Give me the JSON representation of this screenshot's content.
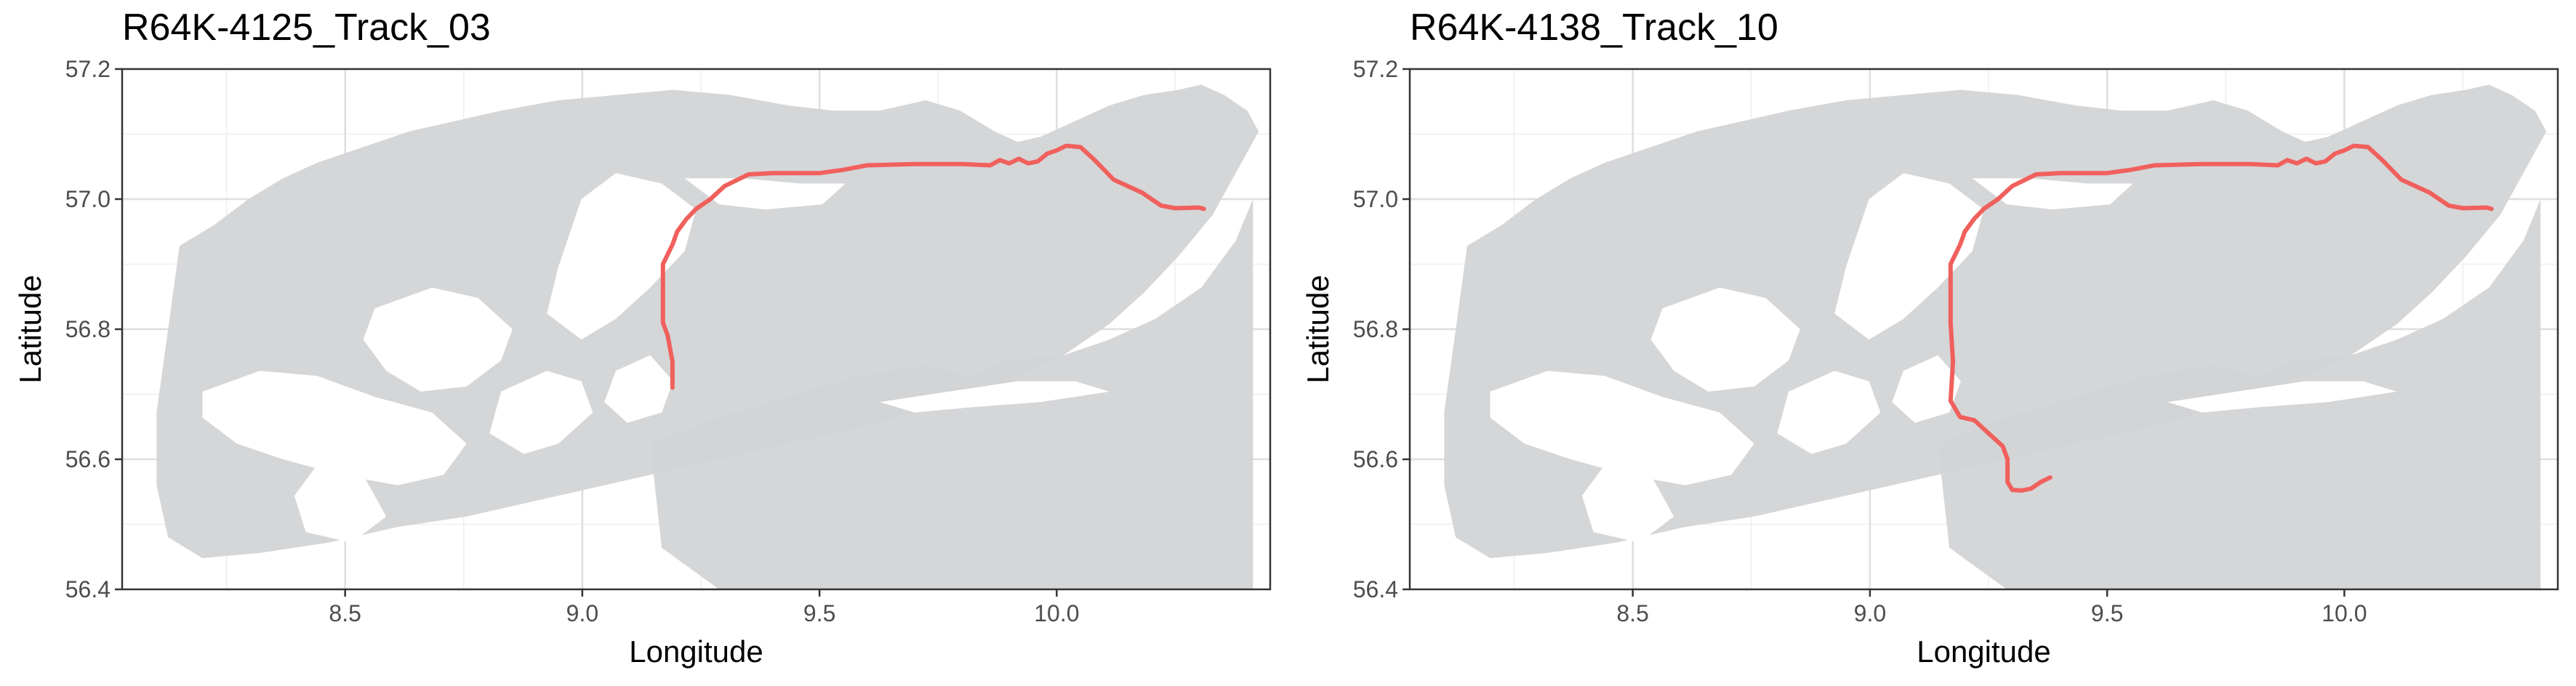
{
  "colors": {
    "track": "#f0605c",
    "land": "#d3d4d6",
    "water": "#ffffff",
    "grid_major": "#dedede",
    "grid_minor": "#efefef",
    "border": "#333333"
  },
  "chart_data": [
    {
      "type": "line",
      "title": "R64K-4125_Track_03",
      "xlabel": "Longitude",
      "ylabel": "Latitude",
      "xlim": [
        8.03,
        10.45
      ],
      "ylim": [
        56.4,
        57.2
      ],
      "x_ticks": [
        "8.5",
        "9.0",
        "9.5",
        "10.0"
      ],
      "y_ticks": [
        "56.4",
        "56.6",
        "56.8",
        "57.0",
        "57.2"
      ],
      "grid": true,
      "series": [
        {
          "x": [
            10.31,
            10.3,
            10.25,
            10.22,
            10.18,
            10.12,
            10.08,
            10.05,
            10.02,
            10.0,
            9.98,
            9.96,
            9.94,
            9.92,
            9.9,
            9.88,
            9.86,
            9.8,
            9.7,
            9.6,
            9.55,
            9.5,
            9.45,
            9.4,
            9.35,
            9.3,
            9.27,
            9.24,
            9.22,
            9.2,
            9.19,
            9.17,
            9.17,
            9.17,
            9.18,
            9.19,
            9.19
          ],
          "y": [
            56.985,
            56.987,
            56.986,
            56.99,
            57.01,
            57.03,
            57.06,
            57.08,
            57.082,
            57.075,
            57.07,
            57.058,
            57.055,
            57.062,
            57.055,
            57.06,
            57.052,
            57.054,
            57.054,
            57.052,
            57.045,
            57.04,
            57.04,
            57.04,
            57.038,
            57.02,
            57.0,
            56.985,
            56.97,
            56.95,
            56.93,
            56.9,
            56.85,
            56.81,
            56.79,
            56.75,
            56.71
          ]
        }
      ]
    },
    {
      "type": "line",
      "title": "R64K-4138_Track_10",
      "xlabel": "Longitude",
      "ylabel": "Latitude",
      "xlim": [
        8.03,
        10.45
      ],
      "ylim": [
        56.4,
        57.2
      ],
      "x_ticks": [
        "8.5",
        "9.0",
        "9.5",
        "10.0"
      ],
      "y_ticks": [
        "56.4",
        "56.6",
        "56.8",
        "57.0",
        "57.2"
      ],
      "grid": true,
      "series": [
        {
          "x": [
            10.31,
            10.3,
            10.25,
            10.22,
            10.18,
            10.12,
            10.08,
            10.05,
            10.02,
            10.0,
            9.98,
            9.96,
            9.94,
            9.92,
            9.9,
            9.88,
            9.86,
            9.8,
            9.7,
            9.6,
            9.55,
            9.5,
            9.45,
            9.4,
            9.35,
            9.3,
            9.27,
            9.24,
            9.22,
            9.2,
            9.19,
            9.17,
            9.17,
            9.17,
            9.175,
            9.17,
            9.19,
            9.22,
            9.25,
            9.28,
            9.29,
            9.29,
            9.3,
            9.32,
            9.34,
            9.36,
            9.38
          ],
          "y": [
            56.985,
            56.987,
            56.986,
            56.99,
            57.01,
            57.03,
            57.06,
            57.08,
            57.082,
            57.075,
            57.07,
            57.058,
            57.055,
            57.062,
            57.055,
            57.06,
            57.052,
            57.054,
            57.054,
            57.052,
            57.045,
            57.04,
            57.04,
            57.04,
            57.038,
            57.02,
            57.0,
            56.985,
            56.97,
            56.95,
            56.93,
            56.9,
            56.85,
            56.81,
            56.75,
            56.69,
            56.665,
            56.66,
            56.64,
            56.62,
            56.6,
            56.565,
            56.553,
            56.552,
            56.555,
            56.565,
            56.572
          ]
        }
      ]
    }
  ]
}
